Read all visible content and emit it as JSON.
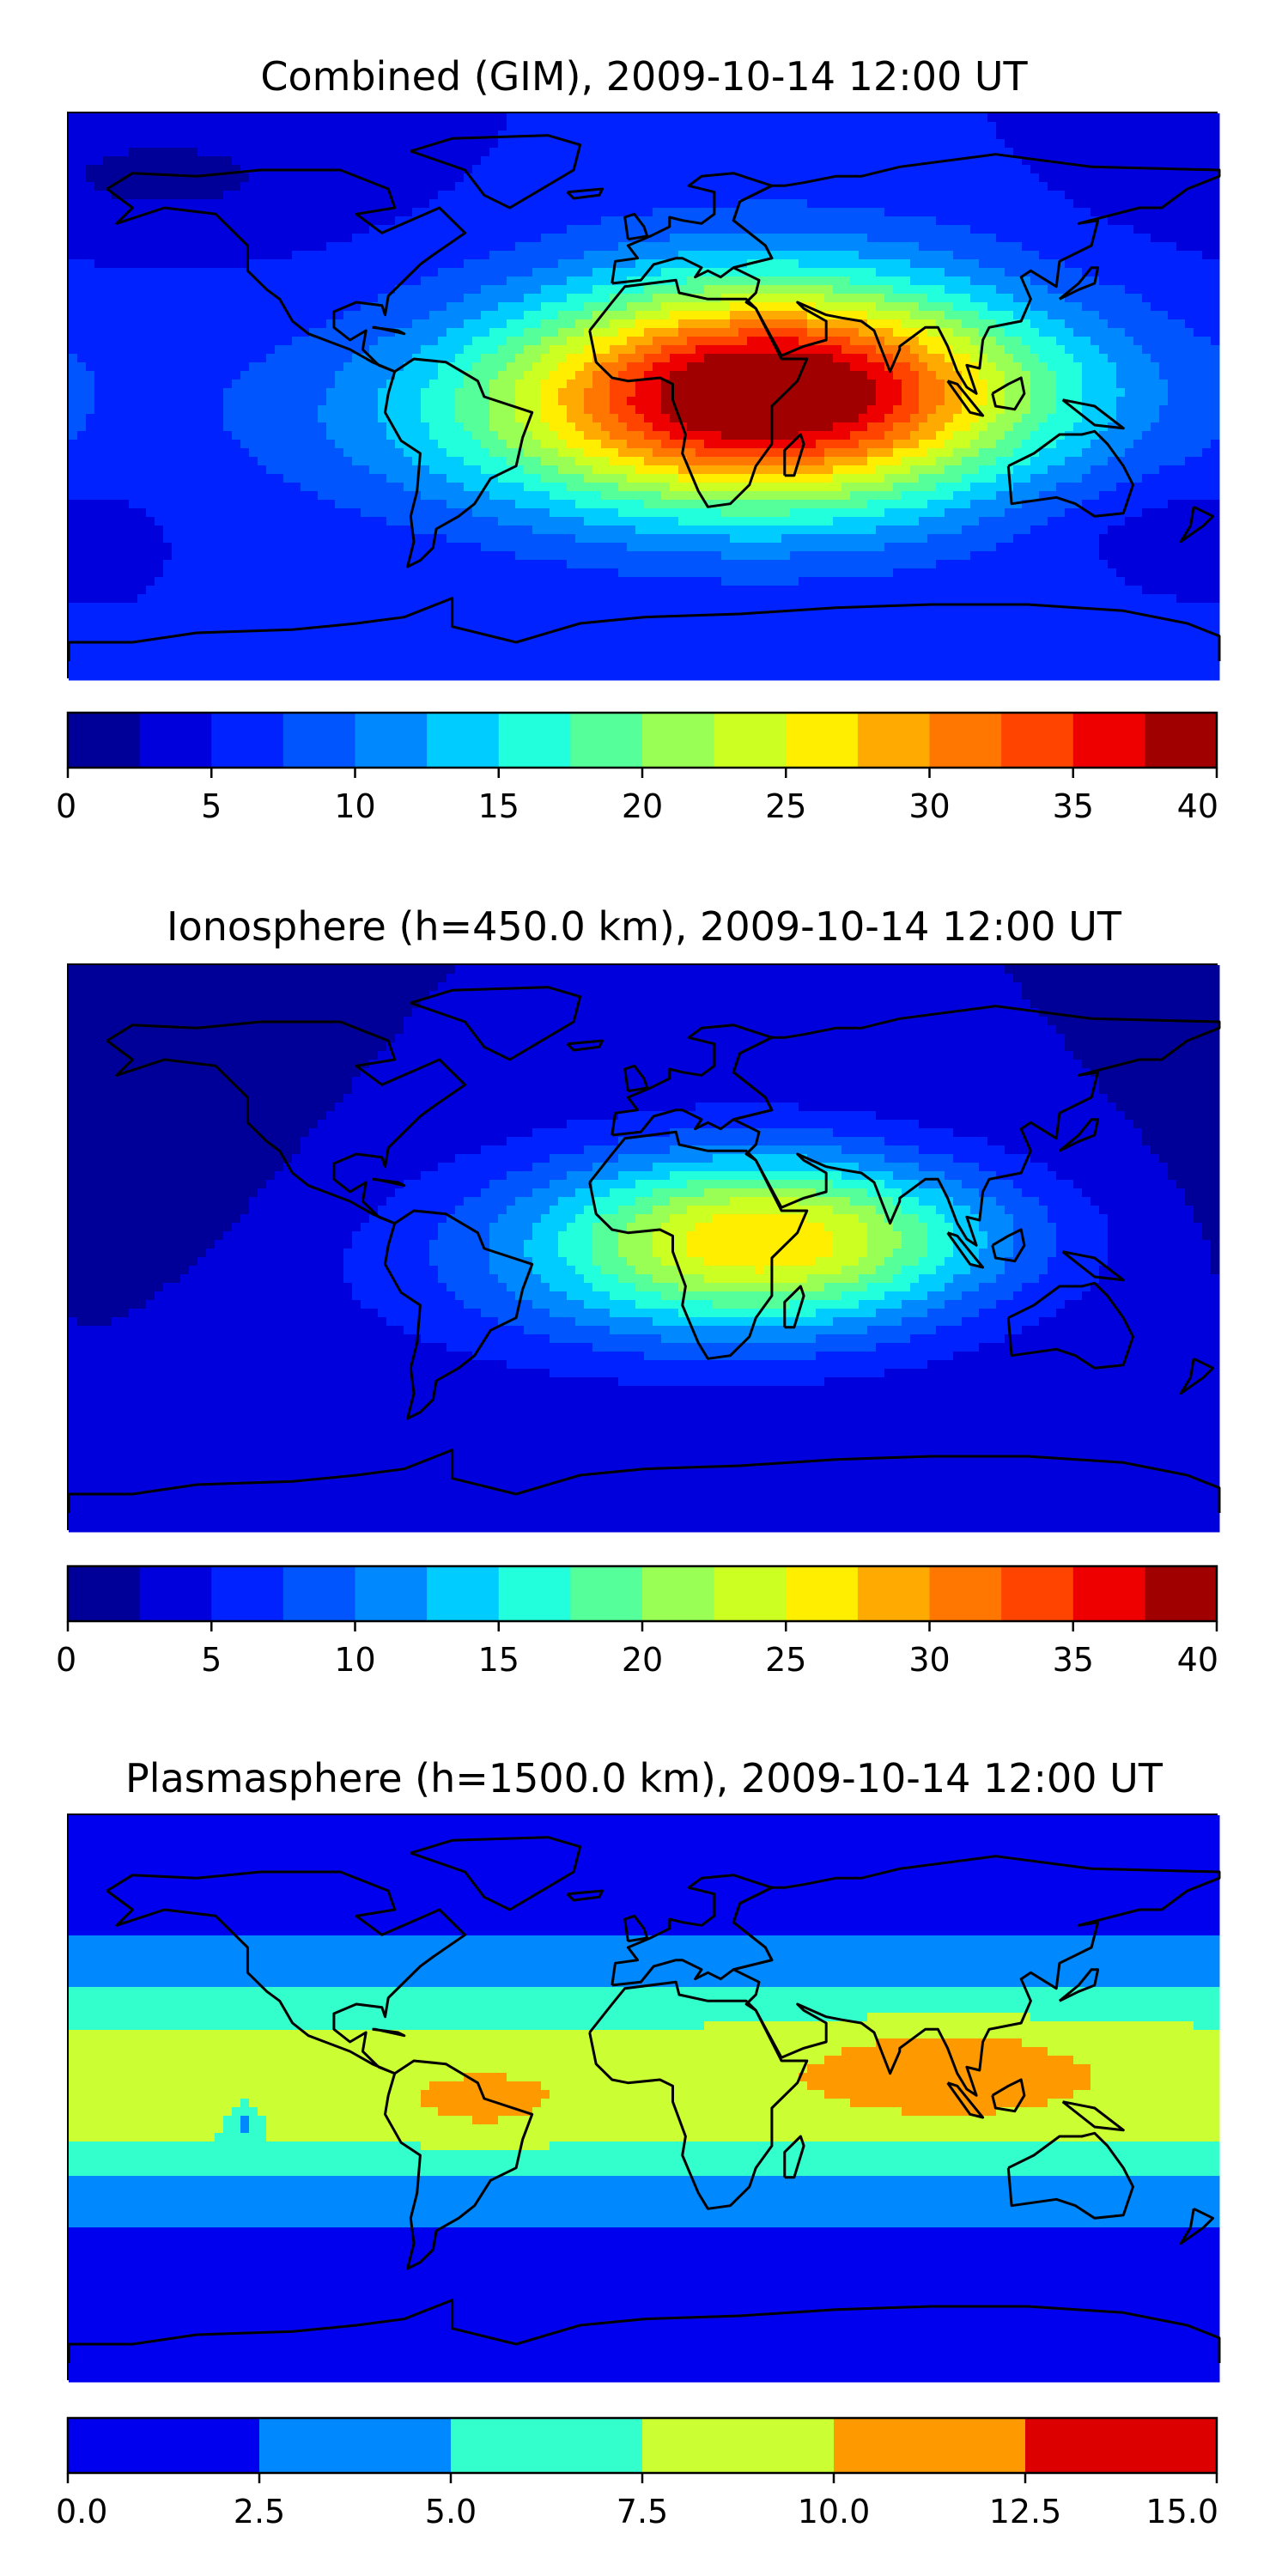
{
  "palette_jet": [
    "#00008f",
    "#0000e5",
    "#0033ff",
    "#0066ff",
    "#0099ff",
    "#00ccff",
    "#00ffee",
    "#33ffcc",
    "#66ff99",
    "#99ff66",
    "#ccff33",
    "#ffee00",
    "#ffaa00",
    "#ff7700",
    "#ff3300",
    "#e60000",
    "#a00000"
  ],
  "chart_data": [
    {
      "type": "heatmap",
      "title": "Combined (GIM), 2009-10-14 12:00 UT",
      "colorbar": {
        "boundaries": [
          0,
          2.5,
          5,
          7.5,
          10,
          12.5,
          15,
          17.5,
          20,
          22.5,
          25,
          27.5,
          30,
          32.5,
          35,
          37.5,
          40
        ],
        "colors": [
          "#000099",
          "#0000dd",
          "#0022ff",
          "#0055ff",
          "#0088ff",
          "#00ccff",
          "#22ffdd",
          "#55ff99",
          "#99ff55",
          "#ccff22",
          "#ffee00",
          "#ffaa00",
          "#ff7700",
          "#ff4400",
          "#ee0000",
          "#a00000"
        ],
        "tick_labels": [
          "0",
          "5",
          "10",
          "15",
          "20",
          "25",
          "30",
          "35",
          "40"
        ],
        "ticks": [
          0,
          5,
          10,
          15,
          20,
          25,
          30,
          35,
          40
        ]
      },
      "field": {
        "background": 5,
        "blobs": [
          {
            "lon": 40,
            "lat": 3,
            "slon": 75,
            "slat": 38,
            "amp": 26
          },
          {
            "lon": 80,
            "lat": 5,
            "slon": 85,
            "slat": 25,
            "amp": 6
          },
          {
            "lon": -20,
            "lat": 0,
            "slon": 90,
            "slat": 30,
            "amp": 6
          },
          {
            "lon": 20,
            "lat": -15,
            "slon": 120,
            "slat": 30,
            "amp": 5
          },
          {
            "lon": -150,
            "lat": 70,
            "slon": 60,
            "slat": 20,
            "amp": -3
          },
          {
            "lon": 160,
            "lat": -40,
            "slon": 40,
            "slat": 15,
            "amp": -2
          }
        ]
      }
    },
    {
      "type": "heatmap",
      "title": "Ionosphere  (h=450.0 km), 2009-10-14 12:00 UT",
      "colorbar": {
        "boundaries": [
          0,
          2.5,
          5,
          7.5,
          10,
          12.5,
          15,
          17.5,
          20,
          22.5,
          25,
          27.5,
          30,
          32.5,
          35,
          37.5,
          40
        ],
        "colors": [
          "#000099",
          "#0000dd",
          "#0022ff",
          "#0055ff",
          "#0088ff",
          "#00ccff",
          "#22ffdd",
          "#55ff99",
          "#99ff55",
          "#ccff22",
          "#ffee00",
          "#ffaa00",
          "#ff7700",
          "#ff4400",
          "#ee0000",
          "#a00000"
        ],
        "tick_labels": [
          "0",
          "5",
          "10",
          "15",
          "20",
          "25",
          "30",
          "35",
          "40"
        ],
        "ticks": [
          0,
          5,
          10,
          15,
          20,
          25,
          30,
          35,
          40
        ]
      },
      "field": {
        "background": 2.5,
        "blobs": [
          {
            "lon": 35,
            "lat": 3,
            "slon": 65,
            "slat": 28,
            "amp": 19
          },
          {
            "lon": 0,
            "lat": -5,
            "slon": 110,
            "slat": 35,
            "amp": 5
          },
          {
            "lon": 80,
            "lat": 5,
            "slon": 60,
            "slat": 20,
            "amp": 3
          },
          {
            "lon": -150,
            "lat": 20,
            "slon": 50,
            "slat": 40,
            "amp": -1.5
          }
        ]
      }
    },
    {
      "type": "heatmap",
      "title": "Plasmasphere (h=1500.0 km), 2009-10-14 12:00 UT",
      "colorbar": {
        "boundaries": [
          0,
          2.5,
          5,
          7.5,
          10,
          12.5,
          15
        ],
        "colors": [
          "#0000ee",
          "#0088ff",
          "#33ffcc",
          "#ccff33",
          "#ff9900",
          "#dd0000"
        ],
        "tick_labels": [
          "0.0",
          "2.5",
          "5.0",
          "7.5",
          "10.0",
          "12.5",
          "15.0"
        ],
        "ticks": [
          0,
          2.5,
          5,
          7.5,
          10,
          12.5,
          15
        ]
      },
      "field": {
        "background": 1,
        "band": {
          "lat": 5,
          "slat": 35,
          "amp": 8.5
        },
        "blobs": [
          {
            "lon": 95,
            "lat": 10,
            "slon": 35,
            "slat": 15,
            "amp": 3
          },
          {
            "lon": -50,
            "lat": -5,
            "slon": 25,
            "slat": 12,
            "amp": 1.5
          },
          {
            "lon": -125,
            "lat": -7,
            "slon": 5,
            "slat": 7,
            "amp": -4
          }
        ]
      }
    }
  ]
}
